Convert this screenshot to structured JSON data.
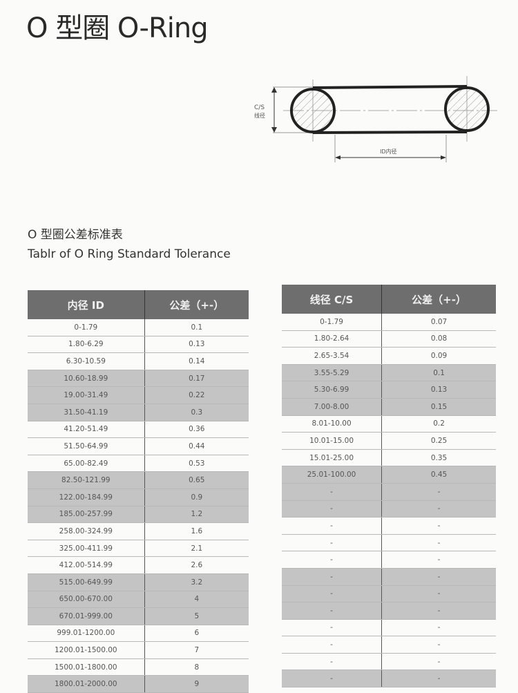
{
  "title": "O 型圈 O-Ring",
  "diagram": {
    "cs_label": "C/S",
    "cs_cn": "线径",
    "id_label": "ID内径"
  },
  "subtitle_cn": "O 型圈公差标准表",
  "subtitle_en": "Tablr of O Ring Standard Tolerance",
  "table_id": {
    "headers": [
      "内径 ID",
      "公差（+-）"
    ],
    "rows": [
      [
        "0-1.79",
        "0.1"
      ],
      [
        "1.80-6.29",
        "0.13"
      ],
      [
        "6.30-10.59",
        "0.14"
      ],
      [
        "10.60-18.99",
        "0.17"
      ],
      [
        "19.00-31.49",
        "0.22"
      ],
      [
        "31.50-41.19",
        "0.3"
      ],
      [
        "41.20-51.49",
        "0.36"
      ],
      [
        "51.50-64.99",
        "0.44"
      ],
      [
        "65.00-82.49",
        "0.53"
      ],
      [
        "82.50-121.99",
        "0.65"
      ],
      [
        "122.00-184.99",
        "0.9"
      ],
      [
        "185.00-257.99",
        "1.2"
      ],
      [
        "258.00-324.99",
        "1.6"
      ],
      [
        "325.00-411.99",
        "2.1"
      ],
      [
        "412.00-514.99",
        "2.6"
      ],
      [
        "515.00-649.99",
        "3.2"
      ],
      [
        "650.00-670.00",
        "4"
      ],
      [
        "670.01-999.00",
        "5"
      ],
      [
        "999.01-1200.00",
        "6"
      ],
      [
        "1200.01-1500.00",
        "7"
      ],
      [
        "1500.01-1800.00",
        "8"
      ],
      [
        "1800.01-2000.00",
        "9"
      ]
    ]
  },
  "table_cs": {
    "headers": [
      "线径 C/S",
      "公差（+-）"
    ],
    "rows": [
      [
        "0-1.79",
        "0.07"
      ],
      [
        "1.80-2.64",
        "0.08"
      ],
      [
        "2.65-3.54",
        "0.09"
      ],
      [
        "3.55-5.29",
        "0.1"
      ],
      [
        "5.30-6.99",
        "0.13"
      ],
      [
        "7.00-8.00",
        "0.15"
      ],
      [
        "8.01-10.00",
        "0.2"
      ],
      [
        "10.01-15.00",
        "0.25"
      ],
      [
        "15.01-25.00",
        "0.35"
      ],
      [
        "25.01-100.00",
        "0.45"
      ],
      [
        "-",
        "-"
      ],
      [
        "-",
        "-"
      ],
      [
        "-",
        "-"
      ],
      [
        "-",
        "-"
      ],
      [
        "-",
        "-"
      ],
      [
        "-",
        "-"
      ],
      [
        "-",
        "-"
      ],
      [
        "-",
        "-"
      ],
      [
        "-",
        "-"
      ],
      [
        "-",
        "-"
      ],
      [
        "-",
        "-"
      ],
      [
        "-",
        "-"
      ]
    ]
  }
}
